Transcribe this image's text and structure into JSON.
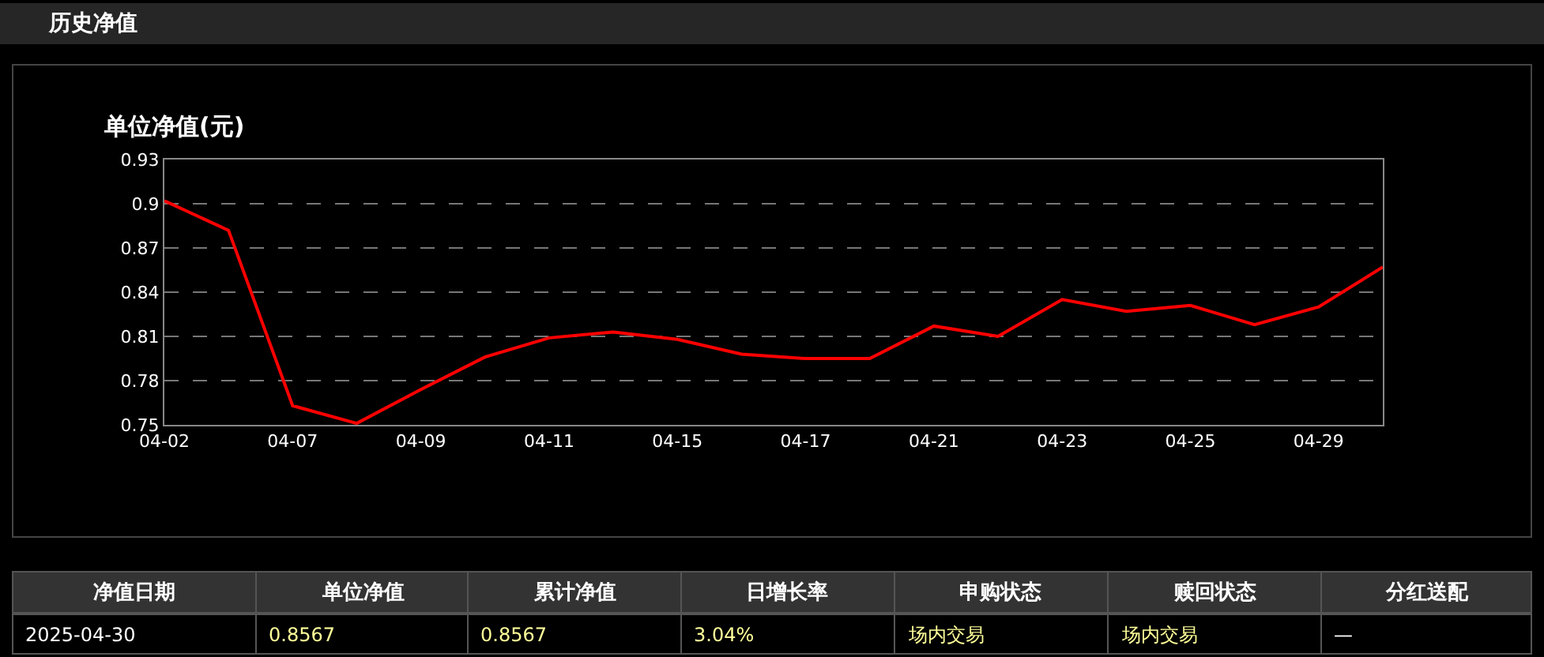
{
  "chart_data": [
    {
      "type": "line",
      "title": "历史净值",
      "ylabel": "单位净值(元)",
      "categories": [
        "04-02",
        null,
        "04-07",
        null,
        "04-09",
        null,
        "04-11",
        null,
        "04-15",
        null,
        "04-17",
        null,
        "04-21",
        null,
        "04-23",
        null,
        "04-25",
        null,
        "04-29",
        null
      ],
      "series": [
        {
          "color": "#ff0000",
          "values": [
            0.902,
            0.882,
            0.763,
            0.751,
            0.774,
            0.796,
            0.809,
            0.813,
            0.808,
            0.798,
            0.795,
            0.795,
            0.817,
            0.81,
            0.835,
            0.827,
            0.831,
            0.818,
            0.83,
            0.857
          ]
        }
      ],
      "ylim": [
        0.75,
        0.93
      ],
      "yticks": [
        0.75,
        0.78,
        0.81,
        0.84,
        0.87,
        0.9,
        0.93
      ],
      "grid": "y",
      "marker": "none",
      "line_style": "solid"
    },
    {
      "type": "other",
      "annotations": [
        "净值日期",
        "单位净值",
        "累计净值",
        "日增长率",
        "申购状态",
        "赎回状态",
        "分红送配",
        "2025-04-30",
        "0.8567",
        "0.8567",
        "3.04%",
        "场内交易",
        "场内交易",
        "—"
      ]
    }
  ]
}
